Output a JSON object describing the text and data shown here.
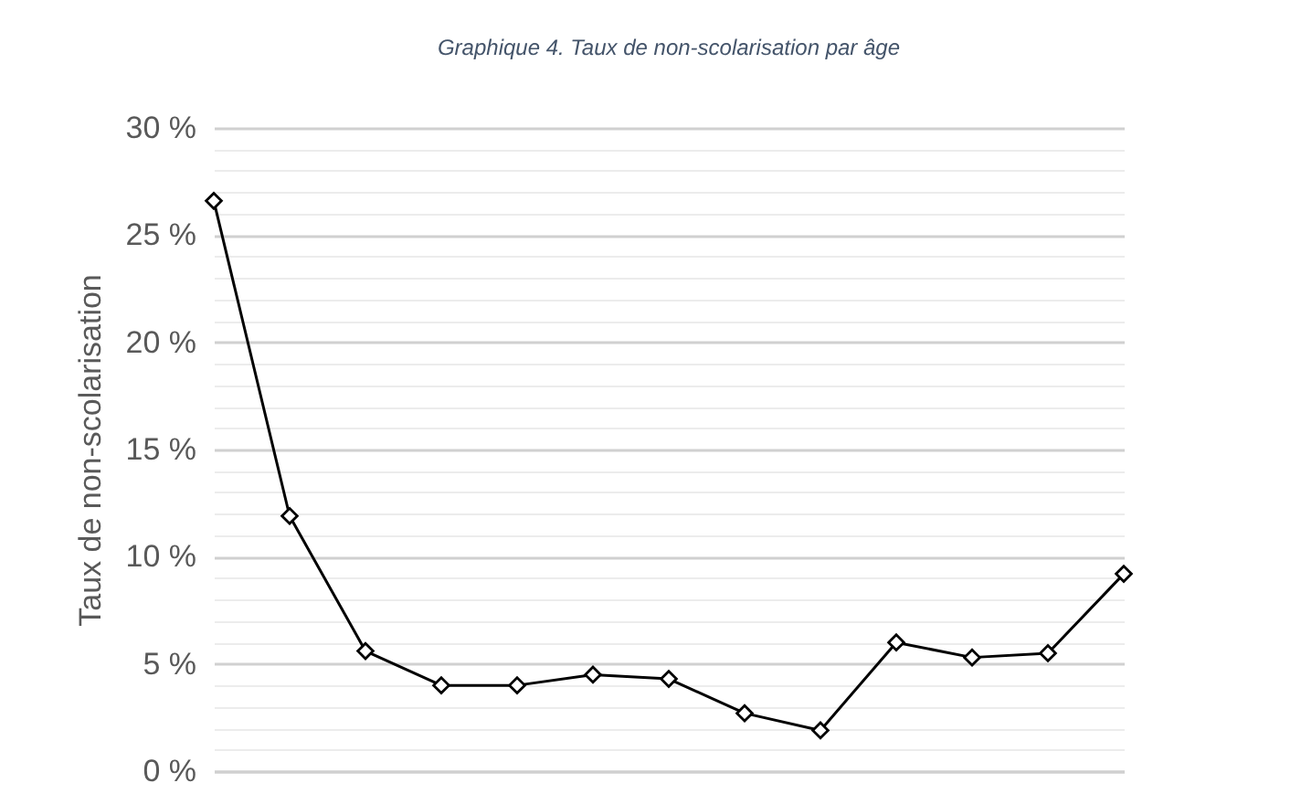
{
  "chart_data": {
    "type": "line",
    "title": "Graphique 4. Taux de non-scolarisation par âge",
    "ylabel": "Taux de non-scolarisation",
    "categories": [
      null,
      null,
      null,
      null,
      null,
      null,
      null,
      null,
      null,
      null,
      null,
      null,
      null
    ],
    "series": [
      {
        "color": "#000000",
        "values": [
          26.6,
          11.9,
          5.6,
          4.0,
          4.0,
          4.5,
          4.3,
          2.7,
          1.9,
          6.0,
          5.3,
          5.5,
          9.2
        ]
      }
    ],
    "ylim": [
      0,
      30
    ],
    "yticks": [
      {
        "value": 0,
        "label": "0 %"
      },
      {
        "value": 1,
        "label": null
      },
      {
        "value": 2,
        "label": null
      },
      {
        "value": 3,
        "label": null
      },
      {
        "value": 4,
        "label": null
      },
      {
        "value": 5,
        "label": "5 %"
      },
      {
        "value": 6,
        "label": null
      },
      {
        "value": 7,
        "label": null
      },
      {
        "value": 8,
        "label": null
      },
      {
        "value": 9,
        "label": null
      },
      {
        "value": 10,
        "label": "10 %"
      },
      {
        "value": 11,
        "label": null
      },
      {
        "value": 12,
        "label": null
      },
      {
        "value": 13,
        "label": null
      },
      {
        "value": 14,
        "label": null
      },
      {
        "value": 15,
        "label": "15 %"
      },
      {
        "value": 16,
        "label": null
      },
      {
        "value": 17,
        "label": null
      },
      {
        "value": 18,
        "label": null
      },
      {
        "value": 19,
        "label": null
      },
      {
        "value": 20,
        "label": "20 %"
      },
      {
        "value": 21,
        "label": null
      },
      {
        "value": 22,
        "label": null
      },
      {
        "value": 23,
        "label": null
      },
      {
        "value": 24,
        "label": null
      },
      {
        "value": 25,
        "label": "25 %"
      },
      {
        "value": 26,
        "label": null
      },
      {
        "value": 27,
        "label": null
      },
      {
        "value": 28,
        "label": null
      },
      {
        "value": 29,
        "label": null
      },
      {
        "value": 30,
        "label": "30 %"
      }
    ],
    "grid": "y",
    "tick_labels": "y",
    "marker": "diamond",
    "line_style": "solid",
    "legend": false
  }
}
